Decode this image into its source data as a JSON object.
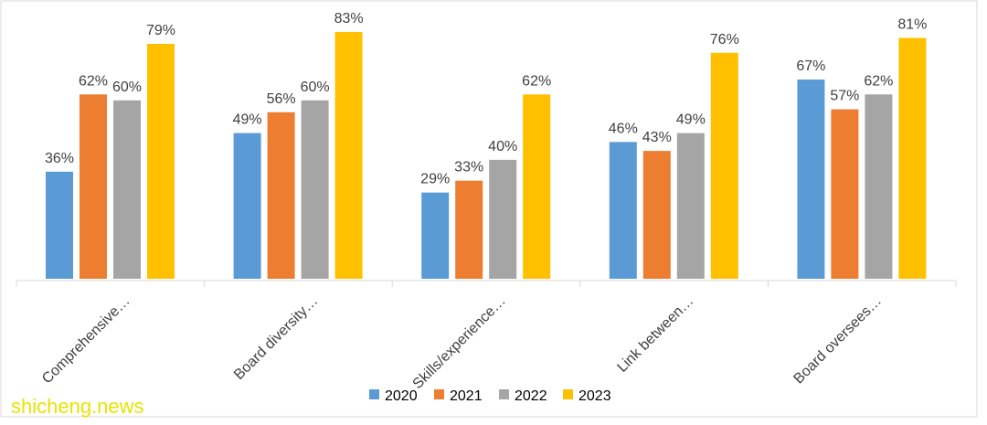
{
  "chart_data": {
    "type": "bar",
    "categories": [
      "Comprehensive…",
      "Board diversity…",
      "Skills/experience…",
      "Link between…",
      "Board oversees…"
    ],
    "series": [
      {
        "name": "2020",
        "color": "#5b9bd5",
        "values": [
          36,
          49,
          29,
          46,
          67
        ]
      },
      {
        "name": "2021",
        "color": "#ed7d31",
        "values": [
          62,
          56,
          33,
          43,
          57
        ]
      },
      {
        "name": "2022",
        "color": "#a5a5a5",
        "values": [
          60,
          60,
          40,
          49,
          62
        ]
      },
      {
        "name": "2023",
        "color": "#ffc000",
        "values": [
          79,
          83,
          62,
          76,
          81
        ]
      }
    ],
    "value_suffix": "%",
    "ylim": [
      0,
      85
    ],
    "legend_position": "bottom",
    "grid": false
  },
  "watermark": "shicheng.news"
}
